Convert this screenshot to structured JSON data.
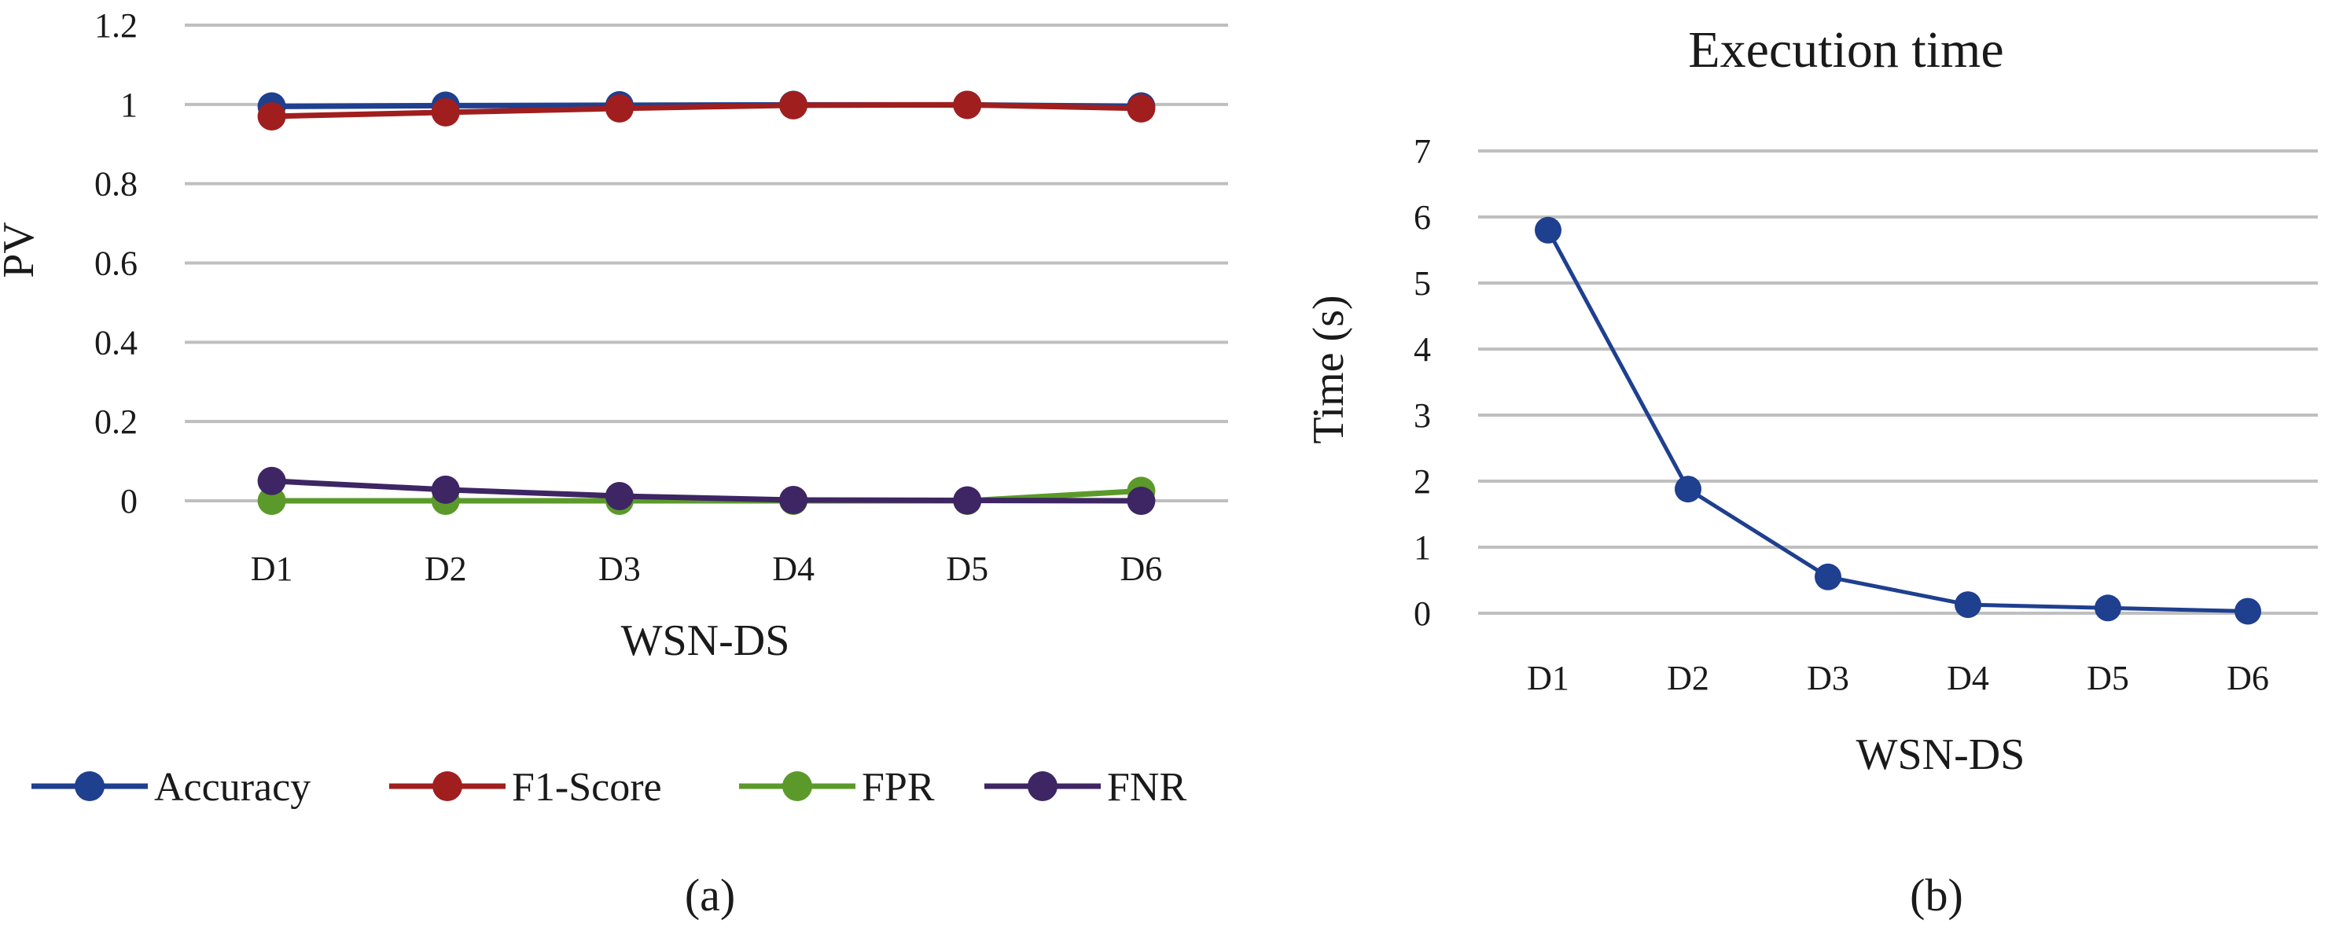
{
  "colors": {
    "Accuracy": "#1f3f8f",
    "F1-Score": "#a01e1e",
    "FPR": "#5b9a2a",
    "FNR": "#3e2563",
    "time": "#1f3f8f"
  },
  "chart_data": [
    {
      "type": "line",
      "panel_label": "(a)",
      "title": "",
      "xlabel": "WSN-DS",
      "ylabel": "PV",
      "ylim": [
        0,
        1.2
      ],
      "yticks": [
        "0",
        "0.2",
        "0.4",
        "0.6",
        "0.8",
        "1",
        "1.2"
      ],
      "categories": [
        "D1",
        "D2",
        "D3",
        "D4",
        "D5",
        "D6"
      ],
      "legend_position": "bottom",
      "series": [
        {
          "name": "Accuracy",
          "values": [
            0.995,
            0.997,
            0.998,
            0.999,
            0.999,
            0.995
          ]
        },
        {
          "name": "F1-Score",
          "values": [
            0.97,
            0.98,
            0.99,
            0.998,
            0.999,
            0.99
          ]
        },
        {
          "name": "FPR",
          "values": [
            0.0,
            0.0,
            0.0,
            0.0,
            0.0,
            0.025
          ]
        },
        {
          "name": "FNR",
          "values": [
            0.05,
            0.028,
            0.012,
            0.002,
            0.001,
            0.0
          ]
        }
      ]
    },
    {
      "type": "line",
      "panel_label": "(b)",
      "title": "Execution time",
      "xlabel": "WSN-DS",
      "ylabel": "Time (s)",
      "ylim": [
        0,
        7
      ],
      "yticks": [
        "0",
        "1",
        "2",
        "3",
        "4",
        "5",
        "6",
        "7"
      ],
      "categories": [
        "D1",
        "D2",
        "D3",
        "D4",
        "D5",
        "D6"
      ],
      "series": [
        {
          "name": "Execution time",
          "values": [
            5.8,
            1.88,
            0.55,
            0.13,
            0.08,
            0.03
          ]
        }
      ]
    }
  ]
}
